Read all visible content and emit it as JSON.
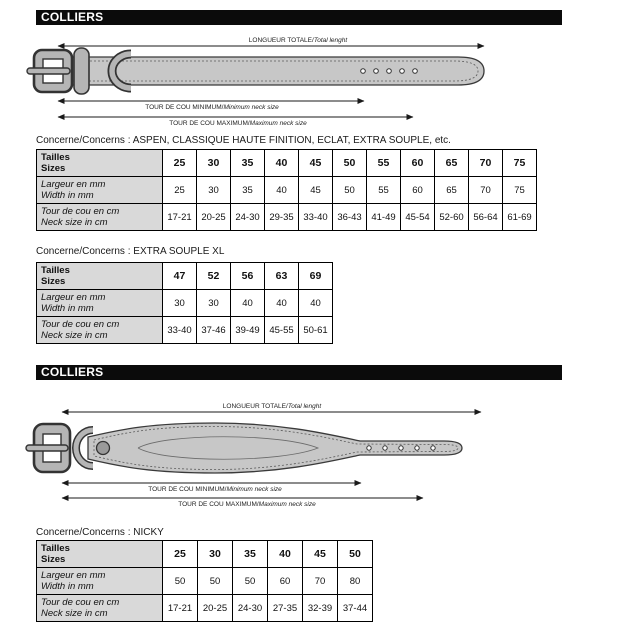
{
  "colors": {
    "bar_bg": "#0b0b0b",
    "bar_text": "#ffffff",
    "table_label_bg": "#d9d9d9",
    "border": "#000000",
    "belt_fill": "#c7c7c7",
    "belt_stroke": "#3a3a3a",
    "buckle_fill": "#b5b5b5"
  },
  "sections": [
    {
      "header": "COLLIERS"
    },
    {
      "header": "COLLIERS"
    }
  ],
  "diagram_labels": {
    "total_fr": "LONGUEUR TOTALE/",
    "total_en": "Total lenght",
    "min_fr": "TOUR DE COU MINIMUM/",
    "min_en": "Minimum neck size",
    "max_fr": "TOUR DE COU MAXIMUM/",
    "max_en": "Maximum neck size"
  },
  "tables": [
    {
      "concerns": "Concerne/Concerns : ASPEN, CLASSIQUE HAUTE FINITION, ECLAT, EXTRA SOUPLE, etc.",
      "row_headers": [
        [
          "Tailles",
          "Sizes"
        ],
        [
          "Largeur en mm",
          "Width in mm"
        ],
        [
          "Tour de cou en cm",
          "Neck size in cm"
        ]
      ],
      "sizes": [
        "25",
        "30",
        "35",
        "40",
        "45",
        "50",
        "55",
        "60",
        "65",
        "70",
        "75"
      ],
      "widths_mm": [
        "25",
        "30",
        "35",
        "40",
        "45",
        "50",
        "55",
        "60",
        "65",
        "70",
        "75"
      ],
      "neck_cm": [
        "17-21",
        "20-25",
        "24-30",
        "29-35",
        "33-40",
        "36-43",
        "41-49",
        "45-54",
        "52-60",
        "56-64",
        "61-69"
      ]
    },
    {
      "concerns": "Concerne/Concerns : EXTRA SOUPLE XL",
      "row_headers": [
        [
          "Tailles",
          "Sizes"
        ],
        [
          "Largeur en mm",
          "Width in mm"
        ],
        [
          "Tour de cou en cm",
          "Neck size in cm"
        ]
      ],
      "sizes": [
        "47",
        "52",
        "56",
        "63",
        "69"
      ],
      "widths_mm": [
        "30",
        "30",
        "40",
        "40",
        "40"
      ],
      "neck_cm": [
        "33-40",
        "37-46",
        "39-49",
        "45-55",
        "50-61"
      ]
    },
    {
      "concerns": "Concerne/Concerns : NICKY",
      "row_headers": [
        [
          "Tailles",
          "Sizes"
        ],
        [
          "Largeur en mm",
          "Width in mm"
        ],
        [
          "Tour de cou en cm",
          "Neck size in cm"
        ]
      ],
      "sizes": [
        "25",
        "30",
        "35",
        "40",
        "45",
        "50"
      ],
      "widths_mm": [
        "50",
        "50",
        "50",
        "60",
        "70",
        "80"
      ],
      "neck_cm": [
        "17-21",
        "20-25",
        "24-30",
        "27-35",
        "32-39",
        "37-44"
      ]
    }
  ]
}
